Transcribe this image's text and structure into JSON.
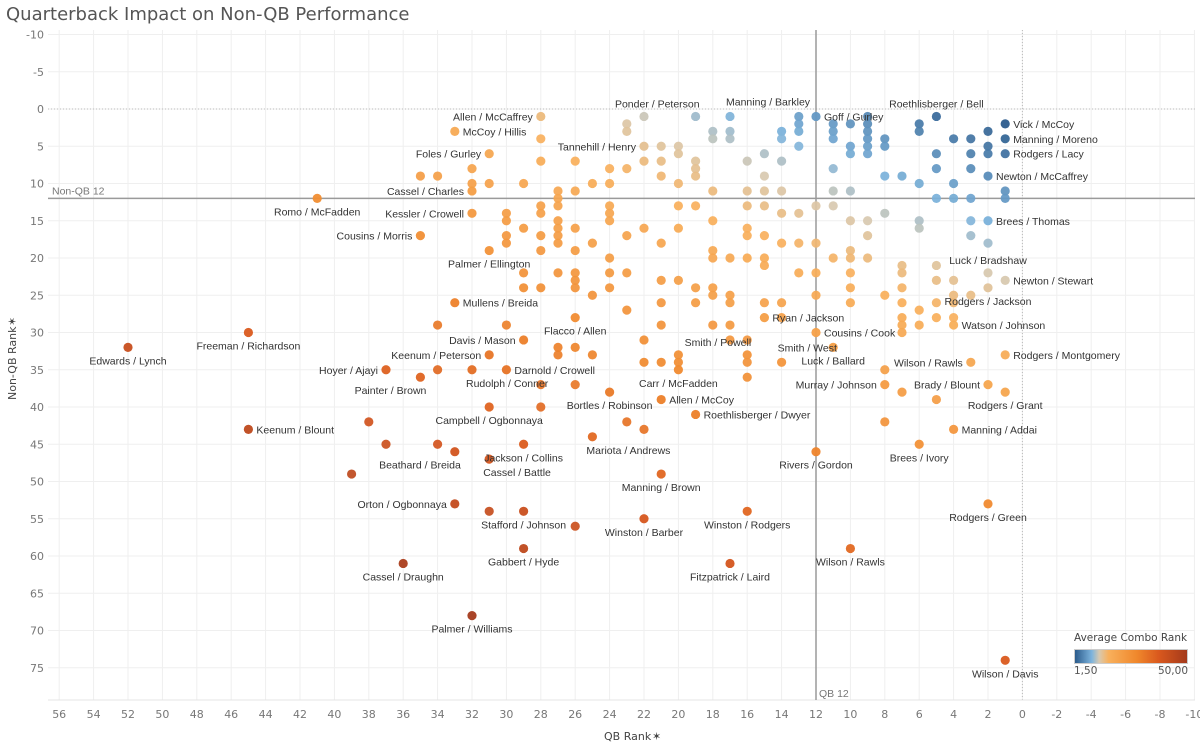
{
  "chart_data": {
    "type": "scatter",
    "title": "Quarterback Impact on Non-QB Performance",
    "xlabel": "QB Rank",
    "ylabel": "Non-QB Rank",
    "xlim": [
      56,
      -10
    ],
    "ylim": [
      -10,
      78
    ],
    "x_ticks": [
      56,
      54,
      52,
      50,
      48,
      46,
      44,
      42,
      40,
      38,
      36,
      34,
      32,
      30,
      28,
      26,
      24,
      22,
      20,
      18,
      16,
      14,
      12,
      10,
      8,
      6,
      4,
      2,
      0,
      -2,
      -4,
      -6,
      -8,
      -10
    ],
    "y_ticks": [
      -10,
      -5,
      0,
      5,
      10,
      15,
      20,
      25,
      30,
      35,
      40,
      45,
      50,
      55,
      60,
      65,
      70,
      75
    ],
    "grid": true,
    "reference_lines": [
      {
        "axis": "x",
        "value": 12,
        "label": "QB 12"
      },
      {
        "axis": "y",
        "value": 12,
        "label": "Non-QB 12"
      }
    ],
    "color_legend": {
      "title": "Average Combo Rank",
      "min_label": "1,50",
      "max_label": "50,00",
      "min": 1.5,
      "max": 50,
      "placement": "bottom-right"
    },
    "colors": [
      "#2b5b8c",
      "#7db4dd",
      "#d8c9b0",
      "#f8b05c",
      "#f0882c",
      "#d9581d",
      "#a43a1c"
    ],
    "labeled_points": [
      {
        "label": "Allen / McCaffrey",
        "qb": 28,
        "non_qb": 1,
        "anchor": "left"
      },
      {
        "label": "McCoy / Hillis",
        "qb": 33,
        "non_qb": 3,
        "anchor": "right"
      },
      {
        "label": "Foles / Gurley",
        "qb": 31,
        "non_qb": 6,
        "anchor": "left"
      },
      {
        "label": "Cassel / Charles",
        "qb": 32,
        "non_qb": 11,
        "anchor": "left"
      },
      {
        "label": "Romo / McFadden",
        "qb": 41,
        "non_qb": 12,
        "anchor": "below"
      },
      {
        "label": "Kessler / Crowell",
        "qb": 32,
        "non_qb": 14,
        "anchor": "left"
      },
      {
        "label": "Cousins / Morris",
        "qb": 35,
        "non_qb": 17,
        "anchor": "left"
      },
      {
        "label": "Palmer / Ellington",
        "qb": 31,
        "non_qb": 19,
        "anchor": "below"
      },
      {
        "label": "Mullens / Breida",
        "qb": 33,
        "non_qb": 26,
        "anchor": "right"
      },
      {
        "label": "Edwards / Lynch",
        "qb": 52,
        "non_qb": 32,
        "anchor": "below"
      },
      {
        "label": "Freeman / Richardson",
        "qb": 45,
        "non_qb": 30,
        "anchor": "below"
      },
      {
        "label": "Hoyer / Ajayi",
        "qb": 37,
        "non_qb": 35,
        "anchor": "left"
      },
      {
        "label": "Painter / Brown",
        "qb": 35,
        "non_qb": 36,
        "anchor": "below"
      },
      {
        "label": "Davis / Mason",
        "qb": 29,
        "non_qb": 31,
        "anchor": "left"
      },
      {
        "label": "Keenum / Peterson",
        "qb": 31,
        "non_qb": 33,
        "anchor": "left"
      },
      {
        "label": "Darnold / Crowell",
        "qb": 30,
        "non_qb": 35,
        "anchor": "right"
      },
      {
        "label": "Rudolph / Conner",
        "qb": 32,
        "non_qb": 35,
        "anchor": "below"
      },
      {
        "label": "Campbell / Ogbonnaya",
        "qb": 31,
        "non_qb": 40,
        "anchor": "below"
      },
      {
        "label": "Flacco / Allen",
        "qb": 26,
        "non_qb": 28,
        "anchor": "below"
      },
      {
        "label": "Bortles / Robinson",
        "qb": 24,
        "non_qb": 38,
        "anchor": "below"
      },
      {
        "label": "Carr / McFadden",
        "qb": 20,
        "non_qb": 35,
        "anchor": "below"
      },
      {
        "label": "Allen / McCoy",
        "qb": 21,
        "non_qb": 39,
        "anchor": "right"
      },
      {
        "label": "Roethlisberger / Dwyer",
        "qb": 19,
        "non_qb": 41,
        "anchor": "right"
      },
      {
        "label": "Mariota / Andrews",
        "qb": 25,
        "non_qb": 44,
        "anchor": "below"
      },
      {
        "label": "Jackson / Collins",
        "qb": 29,
        "non_qb": 45,
        "anchor": "below"
      },
      {
        "label": "Beathard / Breida",
        "qb": 33,
        "non_qb": 46,
        "anchor": "below"
      },
      {
        "label": "Cassel / Battle",
        "qb": 31,
        "non_qb": 47,
        "anchor": "below"
      },
      {
        "label": "Manning / Brown",
        "qb": 21,
        "non_qb": 49,
        "anchor": "below"
      },
      {
        "label": "Orton / Ogbonnaya",
        "qb": 33,
        "non_qb": 53,
        "anchor": "left"
      },
      {
        "label": "Stafford / Johnson",
        "qb": 29,
        "non_qb": 54,
        "anchor": "below"
      },
      {
        "label": "Winston / Barber",
        "qb": 22,
        "non_qb": 55,
        "anchor": "below"
      },
      {
        "label": "Winston / Rodgers",
        "qb": 16,
        "non_qb": 54,
        "anchor": "below"
      },
      {
        "label": "Gabbert / Hyde",
        "qb": 29,
        "non_qb": 59,
        "anchor": "below"
      },
      {
        "label": "Cassel / Draughn",
        "qb": 36,
        "non_qb": 61,
        "anchor": "below"
      },
      {
        "label": "Fitzpatrick / Laird",
        "qb": 17,
        "non_qb": 61,
        "anchor": "below"
      },
      {
        "label": "Wilson / Rawls",
        "qb": 10,
        "non_qb": 59,
        "anchor": "below"
      },
      {
        "label": "Palmer / Williams",
        "qb": 32,
        "non_qb": 68,
        "anchor": "below"
      },
      {
        "label": "Wilson / Davis",
        "qb": 1,
        "non_qb": 74,
        "anchor": "below"
      },
      {
        "label": "Rodgers / Green",
        "qb": 2,
        "non_qb": 53,
        "anchor": "below"
      },
      {
        "label": "Rivers / Gordon",
        "qb": 12,
        "non_qb": 46,
        "anchor": "below"
      },
      {
        "label": "Brees / Ivory",
        "qb": 6,
        "non_qb": 45,
        "anchor": "below"
      },
      {
        "label": "Manning / Addai",
        "qb": 4,
        "non_qb": 43,
        "anchor": "right"
      },
      {
        "label": "Rodgers / Grant",
        "qb": 1,
        "non_qb": 38,
        "anchor": "below"
      },
      {
        "label": "Brady / Blount",
        "qb": 2,
        "non_qb": 37,
        "anchor": "left"
      },
      {
        "label": "Wilson / Rawls",
        "qb": 3,
        "non_qb": 34,
        "anchor": "left"
      },
      {
        "label": "Rodgers / Montgomery",
        "qb": 1,
        "non_qb": 33,
        "anchor": "right"
      },
      {
        "label": "Murray / Johnson",
        "qb": 8,
        "non_qb": 37,
        "anchor": "left"
      },
      {
        "label": "Luck / Ballard",
        "qb": 11,
        "non_qb": 32,
        "anchor": "below"
      },
      {
        "label": "Cousins / Cook",
        "qb": 12,
        "non_qb": 30,
        "anchor": "right"
      },
      {
        "label": "Watson / Johnson",
        "qb": 4,
        "non_qb": 29,
        "anchor": "right"
      },
      {
        "label": "Rodgers / Jackson",
        "qb": 2,
        "non_qb": 24,
        "anchor": "below"
      },
      {
        "label": "Newton / Stewart",
        "qb": 1,
        "non_qb": 23,
        "anchor": "right"
      },
      {
        "label": "Luck / Bradshaw",
        "qb": 2,
        "non_qb": 22,
        "anchor": "above"
      },
      {
        "label": "Brees / Thomas",
        "qb": 2,
        "non_qb": 15,
        "anchor": "right"
      },
      {
        "label": "Newton / McCaffrey",
        "qb": 2,
        "non_qb": 9,
        "anchor": "right"
      },
      {
        "label": "Rodgers / Lacy",
        "qb": 1,
        "non_qb": 6,
        "anchor": "right"
      },
      {
        "label": "Manning / Moreno",
        "qb": 1,
        "non_qb": 4,
        "anchor": "right"
      },
      {
        "label": "Vick / McCoy",
        "qb": 1,
        "non_qb": 2,
        "anchor": "right"
      },
      {
        "label": "Roethlisberger / Bell",
        "qb": 5,
        "non_qb": 1,
        "anchor": "above"
      },
      {
        "label": "Goff / Gurley",
        "qb": 12,
        "non_qb": 1,
        "anchor": "above"
      },
      {
        "label": "Manning / Barkley",
        "qb": 17,
        "non_qb": 1,
        "anchor": "above"
      },
      {
        "label": "Ponder / Peterson",
        "qb": 19,
        "non_qb": 1,
        "anchor": "above"
      },
      {
        "label": "Tannehill / Henry",
        "qb": 22,
        "non_qb": 5,
        "anchor": "left"
      },
      {
        "label": "Ryan / Jackson",
        "qb": 15,
        "non_qb": 28,
        "anchor": "right"
      },
      {
        "label": "Smith / Powell",
        "qb": 16,
        "non_qb": 33,
        "anchor": "above"
      },
      {
        "label": "Smith / West",
        "qb": 14,
        "non_qb": 34,
        "anchor": "above"
      },
      {
        "label": "Keenum / Blount",
        "qb": 45,
        "non_qb": 43,
        "anchor": "right"
      }
    ],
    "unlabeled_points": [
      [
        22,
        1
      ],
      [
        13,
        1
      ],
      [
        23,
        2
      ],
      [
        23,
        3
      ],
      [
        18,
        3
      ],
      [
        17,
        3
      ],
      [
        18,
        4
      ],
      [
        17,
        4
      ],
      [
        14,
        3
      ],
      [
        14,
        4
      ],
      [
        13,
        2
      ],
      [
        13,
        3
      ],
      [
        28,
        4
      ],
      [
        21,
        5
      ],
      [
        20,
        5
      ],
      [
        20,
        6
      ],
      [
        28,
        7
      ],
      [
        26,
        7
      ],
      [
        22,
        7
      ],
      [
        21,
        7
      ],
      [
        19,
        7
      ],
      [
        19,
        8
      ],
      [
        19,
        9
      ],
      [
        16,
        7
      ],
      [
        15,
        6
      ],
      [
        14,
        7
      ],
      [
        13,
        5
      ],
      [
        35,
        9
      ],
      [
        34,
        9
      ],
      [
        32,
        8
      ],
      [
        24,
        8
      ],
      [
        23,
        8
      ],
      [
        21,
        9
      ],
      [
        15,
        9
      ],
      [
        32,
        10
      ],
      [
        31,
        10
      ],
      [
        29,
        10
      ],
      [
        25,
        10
      ],
      [
        24,
        10
      ],
      [
        20,
        10
      ],
      [
        18,
        11
      ],
      [
        16,
        11
      ],
      [
        15,
        11
      ],
      [
        14,
        11
      ],
      [
        27,
        11
      ],
      [
        26,
        11
      ],
      [
        27,
        12
      ],
      [
        27,
        13
      ],
      [
        28,
        13
      ],
      [
        28,
        14
      ],
      [
        24,
        13
      ],
      [
        20,
        13
      ],
      [
        19,
        13
      ],
      [
        16,
        13
      ],
      [
        15,
        13
      ],
      [
        14,
        14
      ],
      [
        13,
        14
      ],
      [
        11,
        2
      ],
      [
        11,
        3
      ],
      [
        11,
        4
      ],
      [
        10,
        2
      ],
      [
        10,
        5
      ],
      [
        10,
        6
      ],
      [
        9,
        1
      ],
      [
        9,
        2
      ],
      [
        9,
        3
      ],
      [
        9,
        4
      ],
      [
        9,
        5
      ],
      [
        9,
        6
      ],
      [
        8,
        4
      ],
      [
        8,
        5
      ],
      [
        6,
        2
      ],
      [
        6,
        3
      ],
      [
        4,
        4
      ],
      [
        3,
        4
      ],
      [
        2,
        3
      ],
      [
        2,
        5
      ],
      [
        2,
        6
      ],
      [
        3,
        6
      ],
      [
        5,
        6
      ],
      [
        3,
        8
      ],
      [
        5,
        8
      ],
      [
        11,
        8
      ],
      [
        8,
        9
      ],
      [
        7,
        9
      ],
      [
        6,
        10
      ],
      [
        4,
        10
      ],
      [
        11,
        11
      ],
      [
        10,
        11
      ],
      [
        5,
        12
      ],
      [
        4,
        12
      ],
      [
        3,
        12
      ],
      [
        1,
        11
      ],
      [
        1,
        12
      ],
      [
        12,
        13
      ],
      [
        11,
        13
      ],
      [
        8,
        14
      ],
      [
        6,
        15
      ],
      [
        6,
        16
      ],
      [
        3,
        15
      ],
      [
        3,
        17
      ],
      [
        2,
        18
      ],
      [
        9,
        15
      ],
      [
        10,
        15
      ],
      [
        9,
        17
      ],
      [
        10,
        19
      ],
      [
        11,
        20
      ],
      [
        10,
        20
      ],
      [
        9,
        20
      ],
      [
        7,
        21
      ],
      [
        7,
        22
      ],
      [
        5,
        21
      ],
      [
        5,
        23
      ],
      [
        4,
        23
      ],
      [
        3,
        25
      ],
      [
        4,
        25
      ],
      [
        30,
        14
      ],
      [
        30,
        15
      ],
      [
        29,
        16
      ],
      [
        30,
        17
      ],
      [
        30,
        18
      ],
      [
        28,
        17
      ],
      [
        27,
        15
      ],
      [
        27,
        16
      ],
      [
        27,
        17
      ],
      [
        27,
        18
      ],
      [
        28,
        19
      ],
      [
        25,
        18
      ],
      [
        24,
        14
      ],
      [
        24,
        15
      ],
      [
        26,
        16
      ],
      [
        26,
        19
      ],
      [
        23,
        17
      ],
      [
        22,
        16
      ],
      [
        21,
        18
      ],
      [
        20,
        16
      ],
      [
        18,
        15
      ],
      [
        18,
        19
      ],
      [
        18,
        20
      ],
      [
        17,
        20
      ],
      [
        16,
        16
      ],
      [
        16,
        17
      ],
      [
        15,
        17
      ],
      [
        14,
        18
      ],
      [
        13,
        18
      ],
      [
        12,
        18
      ],
      [
        16,
        20
      ],
      [
        15,
        20
      ],
      [
        15,
        21
      ],
      [
        29,
        22
      ],
      [
        27,
        22
      ],
      [
        26,
        22
      ],
      [
        26,
        23
      ],
      [
        26,
        24
      ],
      [
        24,
        20
      ],
      [
        24,
        22
      ],
      [
        23,
        22
      ],
      [
        21,
        23
      ],
      [
        20,
        23
      ],
      [
        19,
        24
      ],
      [
        18,
        24
      ],
      [
        18,
        25
      ],
      [
        17,
        25
      ],
      [
        28,
        24
      ],
      [
        29,
        24
      ],
      [
        25,
        25
      ],
      [
        24,
        24
      ],
      [
        23,
        27
      ],
      [
        21,
        26
      ],
      [
        19,
        26
      ],
      [
        17,
        26
      ],
      [
        15,
        26
      ],
      [
        14,
        26
      ],
      [
        13,
        22
      ],
      [
        12,
        22
      ],
      [
        10,
        24
      ],
      [
        10,
        22
      ],
      [
        8,
        25
      ],
      [
        7,
        24
      ],
      [
        7,
        26
      ],
      [
        5,
        26
      ],
      [
        4,
        26
      ],
      [
        6,
        27
      ],
      [
        5,
        28
      ],
      [
        4,
        28
      ],
      [
        7,
        28
      ],
      [
        7,
        29
      ],
      [
        6,
        29
      ],
      [
        7,
        30
      ],
      [
        10,
        26
      ],
      [
        12,
        25
      ],
      [
        14,
        28
      ],
      [
        34,
        29
      ],
      [
        30,
        29
      ],
      [
        27,
        32
      ],
      [
        27,
        33
      ],
      [
        26,
        32
      ],
      [
        25,
        33
      ],
      [
        22,
        31
      ],
      [
        21,
        29
      ],
      [
        22,
        34
      ],
      [
        21,
        34
      ],
      [
        18,
        29
      ],
      [
        17,
        29
      ],
      [
        16,
        31
      ],
      [
        16,
        34
      ],
      [
        16,
        36
      ],
      [
        17,
        31
      ],
      [
        20,
        34
      ],
      [
        20,
        33
      ],
      [
        34,
        35
      ],
      [
        28,
        37
      ],
      [
        26,
        37
      ],
      [
        28,
        40
      ],
      [
        22,
        43
      ],
      [
        23,
        42
      ],
      [
        38,
        42
      ],
      [
        37,
        45
      ],
      [
        34,
        45
      ],
      [
        39,
        49
      ],
      [
        31,
        54
      ],
      [
        26,
        56
      ],
      [
        8,
        35
      ],
      [
        8,
        42
      ],
      [
        5,
        39
      ],
      [
        7,
        38
      ]
    ]
  }
}
